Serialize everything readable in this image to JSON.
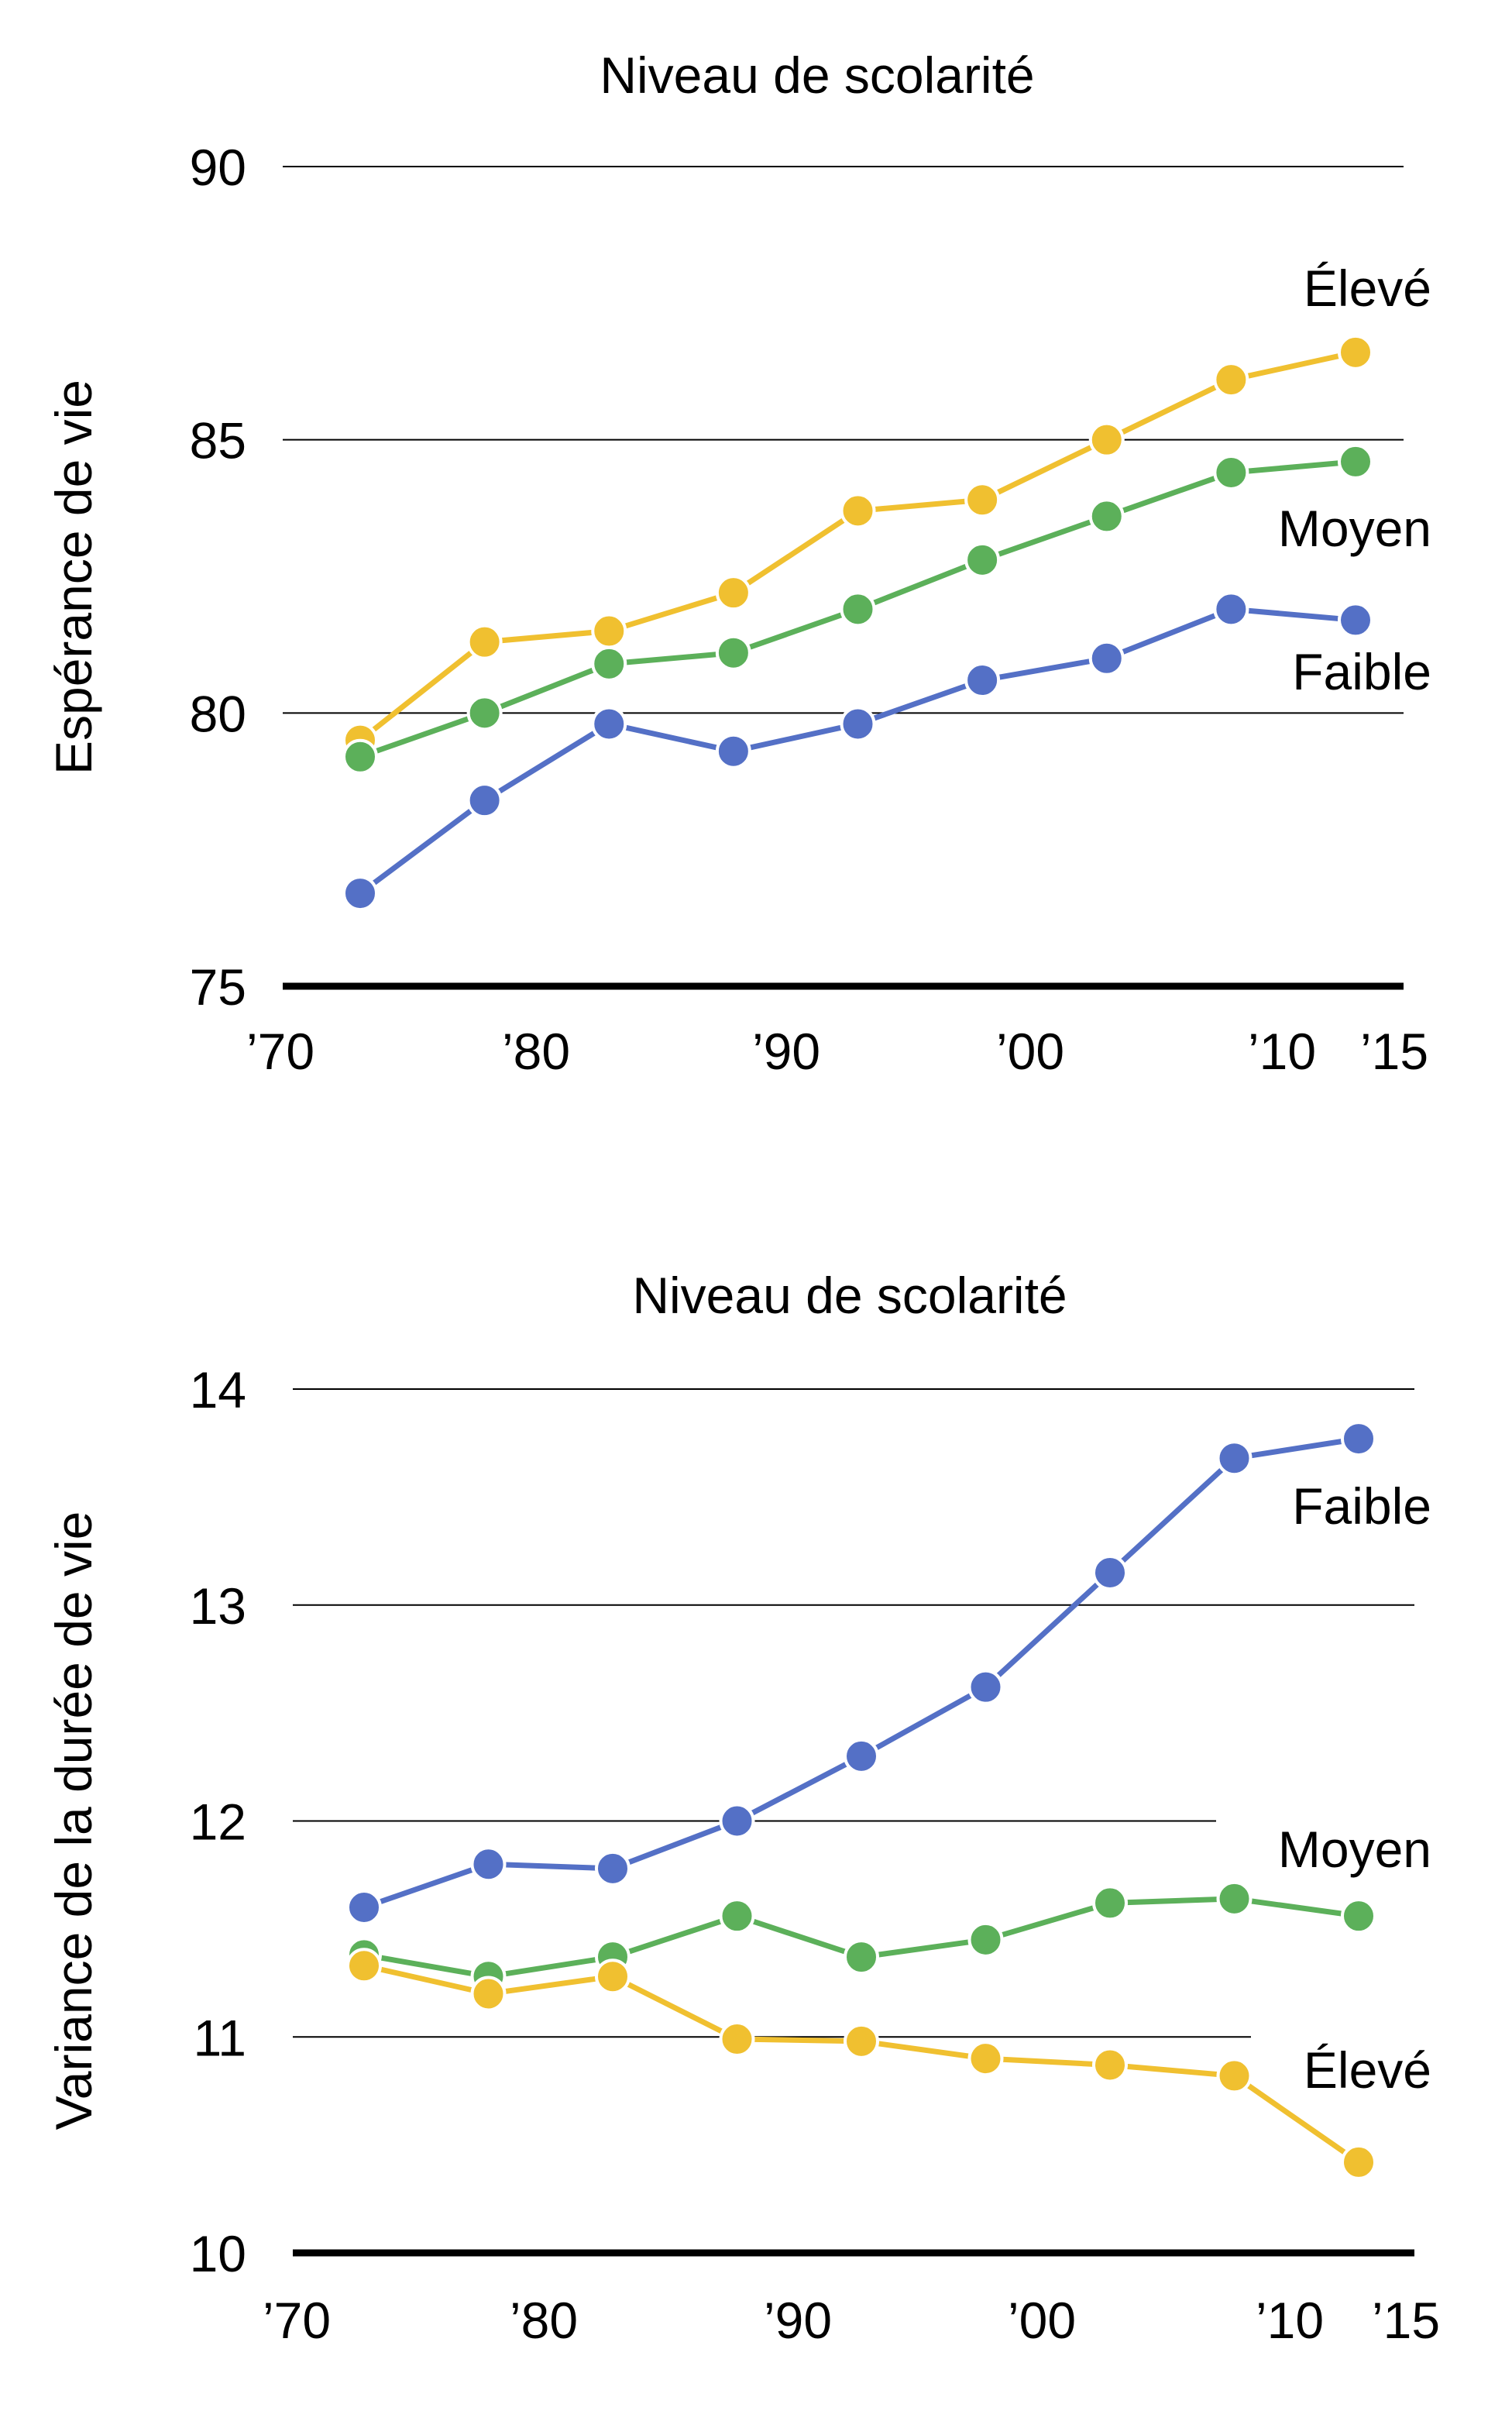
{
  "colors": {
    "faible": "#5470c6",
    "moyen": "#5cb05a",
    "eleve": "#f0c030"
  },
  "chart_data": [
    {
      "type": "line",
      "title": "Niveau de scolarité",
      "ylabel": "Espérance de vie",
      "xlabel": "",
      "ylim": [
        75,
        90
      ],
      "yticks": [
        "75",
        "80",
        "85",
        "90"
      ],
      "xticks": [
        "’70",
        "’80",
        "’90",
        "’00",
        "’10",
        "’15"
      ],
      "grid": true,
      "x": [
        1973,
        1978,
        1983,
        1988,
        1993,
        1998,
        2003,
        2008,
        2013
      ],
      "series": [
        {
          "name": "Élevé",
          "key": "eleve",
          "values": [
            79.5,
            81.3,
            81.5,
            82.2,
            83.7,
            83.9,
            85.0,
            86.1,
            86.6
          ]
        },
        {
          "name": "Moyen",
          "key": "moyen",
          "values": [
            79.2,
            80.0,
            80.9,
            81.1,
            81.9,
            82.8,
            83.6,
            84.4,
            84.6
          ]
        },
        {
          "name": "Faible",
          "key": "faible",
          "values": [
            76.7,
            78.4,
            79.8,
            79.3,
            79.8,
            80.6,
            81.0,
            81.9,
            81.7
          ]
        }
      ]
    },
    {
      "type": "line",
      "title": "Niveau de scolarité",
      "ylabel": "Variance de la durée de vie",
      "xlabel": "",
      "ylim": [
        10,
        14
      ],
      "yticks": [
        "10",
        "11",
        "12",
        "13",
        "14"
      ],
      "xticks": [
        "’70",
        "’80",
        "’90",
        "’00",
        "’10",
        "’15"
      ],
      "grid": true,
      "x": [
        1973,
        1978,
        1983,
        1988,
        1993,
        1998,
        2003,
        2008,
        2013
      ],
      "series": [
        {
          "name": "Faible",
          "key": "faible",
          "values": [
            11.6,
            11.8,
            11.78,
            12.0,
            12.3,
            12.62,
            13.15,
            13.68,
            13.77
          ]
        },
        {
          "name": "Moyen",
          "key": "moyen",
          "values": [
            11.38,
            11.28,
            11.37,
            11.56,
            11.37,
            11.45,
            11.62,
            11.64,
            11.56
          ]
        },
        {
          "name": "Élevé",
          "key": "eleve",
          "values": [
            11.33,
            11.2,
            11.28,
            10.99,
            10.98,
            10.9,
            10.87,
            10.82,
            10.42
          ]
        }
      ]
    }
  ]
}
